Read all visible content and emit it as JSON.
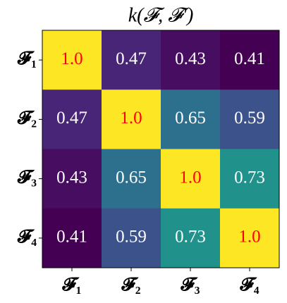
{
  "chart_data": {
    "type": "heatmap",
    "title": "k(𝓕, 𝓕′)",
    "x_categories": [
      "𝓕₁",
      "𝓕₂",
      "𝓕₃",
      "𝓕₄"
    ],
    "y_categories": [
      "𝓕₁",
      "𝓕₂",
      "𝓕₃",
      "𝓕₄"
    ],
    "values": [
      [
        1,
        0.47,
        0.43,
        0.41
      ],
      [
        0.47,
        1,
        0.65,
        0.59
      ],
      [
        0.43,
        0.65,
        1,
        0.73
      ],
      [
        0.41,
        0.59,
        0.73,
        1
      ]
    ],
    "value_labels": [
      [
        "1.0",
        "0.47",
        "0.43",
        "0.41"
      ],
      [
        "0.47",
        "1.0",
        "0.65",
        "0.59"
      ],
      [
        "0.43",
        "0.65",
        "1.0",
        "0.73"
      ],
      [
        "0.41",
        "0.59",
        "0.73",
        "1.0"
      ]
    ],
    "colors": [
      [
        "#fde725",
        "#482576",
        "#470d60",
        "#440154"
      ],
      [
        "#482576",
        "#fde725",
        "#2d708e",
        "#3b528b"
      ],
      [
        "#470d60",
        "#2d708e",
        "#fde725",
        "#21918c"
      ],
      [
        "#440154",
        "#3b528b",
        "#21918c",
        "#fde725"
      ]
    ],
    "value_label_colors": [
      [
        "red",
        "white",
        "white",
        "white"
      ],
      [
        "white",
        "red",
        "white",
        "white"
      ],
      [
        "white",
        "white",
        "red",
        "white"
      ],
      [
        "white",
        "white",
        "white",
        "red"
      ]
    ]
  }
}
